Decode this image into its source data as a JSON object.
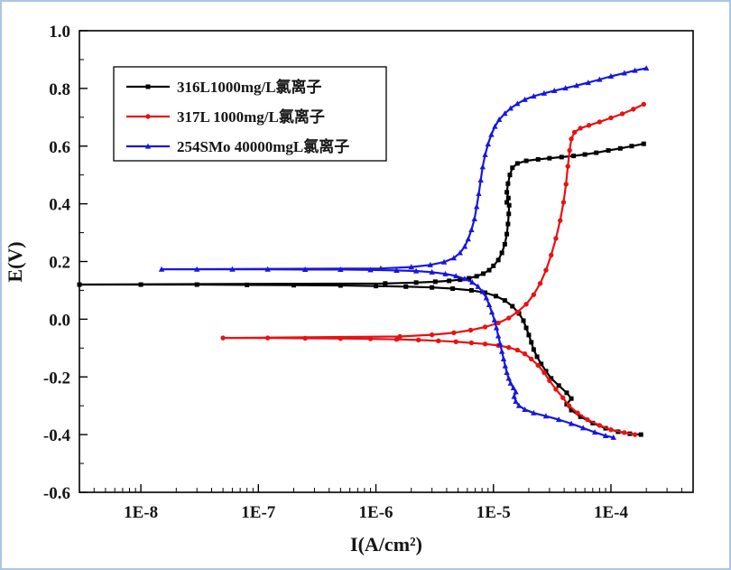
{
  "figure": {
    "background": "#ffffff",
    "border_color": "#a9c6e6"
  },
  "chart_data": {
    "type": "line",
    "title": "",
    "xlabel": "I(A/cm²)",
    "ylabel": "E(V)",
    "x_scale": "log",
    "xlim": [
      3e-09,
      0.0005
    ],
    "ylim": [
      -0.6,
      1.0
    ],
    "x_ticks": [
      1e-08,
      1e-07,
      1e-06,
      1e-05,
      0.0001
    ],
    "x_tick_labels": [
      "1E-8",
      "1E-7",
      "1E-6",
      "1E-5",
      "1E-4"
    ],
    "y_ticks": [
      -0.6,
      -0.4,
      -0.2,
      0.0,
      0.2,
      0.4,
      0.6,
      0.8,
      1.0
    ],
    "y_tick_labels": [
      "-0.6",
      "-0.4",
      "-0.2",
      "0.0",
      "0.2",
      "0.4",
      "0.6",
      "0.8",
      "1.0"
    ],
    "grid": false,
    "legend_position": "upper-left",
    "frame_color": "#000000",
    "series": [
      {
        "name": "316L1000mg/L氯离子",
        "color": "#000000",
        "marker": "square",
        "ecorr_v": 0.12,
        "points": [
          [
            0.00018,
            -0.4
          ],
          [
            0.000145,
            -0.397
          ],
          [
            0.000115,
            -0.39
          ],
          [
            9e-05,
            -0.378
          ],
          [
            7e-05,
            -0.36
          ],
          [
            5.5e-05,
            -0.338
          ],
          [
            4.6e-05,
            -0.315
          ],
          [
            4.2e-05,
            -0.295
          ],
          [
            4.6e-05,
            -0.275
          ],
          [
            4.2e-05,
            -0.255
          ],
          [
            3.6e-05,
            -0.23
          ],
          [
            3.1e-05,
            -0.205
          ],
          [
            2.8e-05,
            -0.18
          ],
          [
            2.55e-05,
            -0.155
          ],
          [
            2.35e-05,
            -0.13
          ],
          [
            2.2e-05,
            -0.105
          ],
          [
            2.1e-05,
            -0.08
          ],
          [
            2e-05,
            -0.055
          ],
          [
            1.9e-05,
            -0.03
          ],
          [
            1.8e-05,
            -0.005
          ],
          [
            1.65e-05,
            0.02
          ],
          [
            1.45e-05,
            0.045
          ],
          [
            1.25e-05,
            0.065
          ],
          [
            1.05e-05,
            0.08
          ],
          [
            8.5e-06,
            0.092
          ],
          [
            6.5e-06,
            0.1
          ],
          [
            4.5e-06,
            0.106
          ],
          [
            3e-06,
            0.11
          ],
          [
            1.8e-06,
            0.113
          ],
          [
            1e-06,
            0.115
          ],
          [
            5e-07,
            0.117
          ],
          [
            2e-07,
            0.118
          ],
          [
            8e-08,
            0.119
          ],
          [
            3e-08,
            0.12
          ],
          [
            1e-08,
            0.12
          ],
          [
            3e-09,
            0.12
          ],
          [
            1.2e-06,
            0.124
          ],
          [
            2.2e-06,
            0.127
          ],
          [
            3.2e-06,
            0.13
          ],
          [
            4.2e-06,
            0.133
          ],
          [
            5.2e-06,
            0.137
          ],
          [
            6.2e-06,
            0.142
          ],
          [
            7.2e-06,
            0.149
          ],
          [
            8.2e-06,
            0.158
          ],
          [
            9.2e-06,
            0.17
          ],
          [
            1e-05,
            0.185
          ],
          [
            1.1e-05,
            0.205
          ],
          [
            1.18e-05,
            0.23
          ],
          [
            1.25e-05,
            0.26
          ],
          [
            1.3e-05,
            0.295
          ],
          [
            1.33e-05,
            0.33
          ],
          [
            1.35e-05,
            0.365
          ],
          [
            1.36e-05,
            0.395
          ],
          [
            1.3e-05,
            0.405
          ],
          [
            1.34e-05,
            0.42
          ],
          [
            1.3e-05,
            0.44
          ],
          [
            1.33e-05,
            0.47
          ],
          [
            1.38e-05,
            0.5
          ],
          [
            1.45e-05,
            0.525
          ],
          [
            1.6e-05,
            0.54
          ],
          [
            1.9e-05,
            0.549
          ],
          [
            2.4e-05,
            0.554
          ],
          [
            3e-05,
            0.558
          ],
          [
            3.8e-05,
            0.562
          ],
          [
            4.8e-05,
            0.566
          ],
          [
            6e-05,
            0.571
          ],
          [
            7.5e-05,
            0.577
          ],
          [
            9.5e-05,
            0.585
          ],
          [
            0.00012,
            0.592
          ],
          [
            0.00015,
            0.6
          ],
          [
            0.00019,
            0.608
          ]
        ]
      },
      {
        "name": "317L 1000mg/L氯离子",
        "color": "#e81212",
        "marker": "circle",
        "ecorr_v": -0.065,
        "points": [
          [
            0.00016,
            -0.4
          ],
          [
            0.00013,
            -0.393
          ],
          [
            0.0001,
            -0.383
          ],
          [
            8e-05,
            -0.368
          ],
          [
            6.3e-05,
            -0.348
          ],
          [
            5.2e-05,
            -0.325
          ],
          [
            4.4e-05,
            -0.3
          ],
          [
            3.9e-05,
            -0.272
          ],
          [
            3.4e-05,
            -0.243
          ],
          [
            3e-05,
            -0.213
          ],
          [
            2.7e-05,
            -0.185
          ],
          [
            2.4e-05,
            -0.16
          ],
          [
            2.1e-05,
            -0.138
          ],
          [
            1.85e-05,
            -0.12
          ],
          [
            1.6e-05,
            -0.107
          ],
          [
            1.35e-05,
            -0.098
          ],
          [
            1.1e-05,
            -0.091
          ],
          [
            8.5e-06,
            -0.086
          ],
          [
            6.5e-06,
            -0.082
          ],
          [
            4.8e-06,
            -0.078
          ],
          [
            3.4e-06,
            -0.075
          ],
          [
            2.3e-06,
            -0.072
          ],
          [
            1.5e-06,
            -0.07
          ],
          [
            9e-07,
            -0.068
          ],
          [
            5e-07,
            -0.067
          ],
          [
            2.5e-07,
            -0.066
          ],
          [
            1.2e-07,
            -0.065
          ],
          [
            5e-08,
            -0.065
          ],
          [
            1.6e-06,
            -0.06
          ],
          [
            3e-06,
            -0.054
          ],
          [
            4.6e-06,
            -0.047
          ],
          [
            6.4e-06,
            -0.038
          ],
          [
            8.5e-06,
            -0.027
          ],
          [
            1.1e-05,
            -0.013
          ],
          [
            1.35e-05,
            0.004
          ],
          [
            1.6e-05,
            0.025
          ],
          [
            1.9e-05,
            0.052
          ],
          [
            2.2e-05,
            0.085
          ],
          [
            2.5e-05,
            0.124
          ],
          [
            2.8e-05,
            0.17
          ],
          [
            3.1e-05,
            0.222
          ],
          [
            3.4e-05,
            0.28
          ],
          [
            3.7e-05,
            0.342
          ],
          [
            3.95e-05,
            0.405
          ],
          [
            4.15e-05,
            0.468
          ],
          [
            4.3e-05,
            0.53
          ],
          [
            4.45e-05,
            0.585
          ],
          [
            4.6e-05,
            0.625
          ],
          [
            4.9e-05,
            0.648
          ],
          [
            5.5e-05,
            0.662
          ],
          [
            6.5e-05,
            0.672
          ],
          [
            8e-05,
            0.684
          ],
          [
            0.0001,
            0.698
          ],
          [
            0.000125,
            0.712
          ],
          [
            0.000155,
            0.728
          ],
          [
            0.00019,
            0.745
          ]
        ]
      },
      {
        "name": "254SMo 40000mgL氯离子",
        "color": "#1717e0",
        "marker": "triangle-up",
        "ecorr_v": 0.172,
        "points": [
          [
            0.000105,
            -0.41
          ],
          [
            9e-05,
            -0.404
          ],
          [
            7.3e-05,
            -0.392
          ],
          [
            5.8e-05,
            -0.377
          ],
          [
            4.6e-05,
            -0.362
          ],
          [
            3.6e-05,
            -0.348
          ],
          [
            2.8e-05,
            -0.336
          ],
          [
            2.2e-05,
            -0.325
          ],
          [
            1.85e-05,
            -0.313
          ],
          [
            1.65e-05,
            -0.3
          ],
          [
            1.55e-05,
            -0.285
          ],
          [
            1.5e-05,
            -0.268
          ],
          [
            1.55e-05,
            -0.252
          ],
          [
            1.48e-05,
            -0.238
          ],
          [
            1.4e-05,
            -0.222
          ],
          [
            1.35e-05,
            -0.205
          ],
          [
            1.3e-05,
            -0.185
          ],
          [
            1.26e-05,
            -0.162
          ],
          [
            1.22e-05,
            -0.138
          ],
          [
            1.18e-05,
            -0.112
          ],
          [
            1.14e-05,
            -0.085
          ],
          [
            1.1e-05,
            -0.058
          ],
          [
            1.06e-05,
            -0.03
          ],
          [
            1.02e-05,
            -0.003
          ],
          [
            9.7e-06,
            0.024
          ],
          [
            9.2e-06,
            0.05
          ],
          [
            8.7e-06,
            0.074
          ],
          [
            8.1e-06,
            0.095
          ],
          [
            7.4e-06,
            0.113
          ],
          [
            6.6e-06,
            0.128
          ],
          [
            5.7e-06,
            0.14
          ],
          [
            4.8e-06,
            0.15
          ],
          [
            3.9e-06,
            0.157
          ],
          [
            3e-06,
            0.163
          ],
          [
            2.2e-06,
            0.167
          ],
          [
            1.5e-06,
            0.169
          ],
          [
            9e-07,
            0.171
          ],
          [
            5e-07,
            0.172
          ],
          [
            2.5e-07,
            0.172
          ],
          [
            1.2e-07,
            0.173
          ],
          [
            6e-08,
            0.173
          ],
          [
            3e-08,
            0.173
          ],
          [
            1.5e-08,
            0.173
          ],
          [
            1.1e-06,
            0.176
          ],
          [
            2e-06,
            0.181
          ],
          [
            2.9e-06,
            0.188
          ],
          [
            3.8e-06,
            0.198
          ],
          [
            4.6e-06,
            0.212
          ],
          [
            5.2e-06,
            0.23
          ],
          [
            5.7e-06,
            0.252
          ],
          [
            6.1e-06,
            0.278
          ],
          [
            6.5e-06,
            0.31
          ],
          [
            6.9e-06,
            0.348
          ],
          [
            7.2e-06,
            0.39
          ],
          [
            7.5e-06,
            0.435
          ],
          [
            7.8e-06,
            0.482
          ],
          [
            8.1e-06,
            0.528
          ],
          [
            8.5e-06,
            0.57
          ],
          [
            9e-06,
            0.607
          ],
          [
            9.6e-06,
            0.64
          ],
          [
            1.03e-05,
            0.668
          ],
          [
            1.12e-05,
            0.692
          ],
          [
            1.25e-05,
            0.713
          ],
          [
            1.4e-05,
            0.731
          ],
          [
            1.6e-05,
            0.747
          ],
          [
            1.85e-05,
            0.761
          ],
          [
            2.2e-05,
            0.773
          ],
          [
            2.7e-05,
            0.783
          ],
          [
            3.3e-05,
            0.792
          ],
          [
            4.1e-05,
            0.801
          ],
          [
            5.1e-05,
            0.81
          ],
          [
            6.4e-05,
            0.82
          ],
          [
            8e-05,
            0.831
          ],
          [
            0.0001,
            0.842
          ],
          [
            0.00013,
            0.853
          ],
          [
            0.00016,
            0.862
          ],
          [
            0.0002,
            0.87
          ]
        ]
      }
    ]
  }
}
